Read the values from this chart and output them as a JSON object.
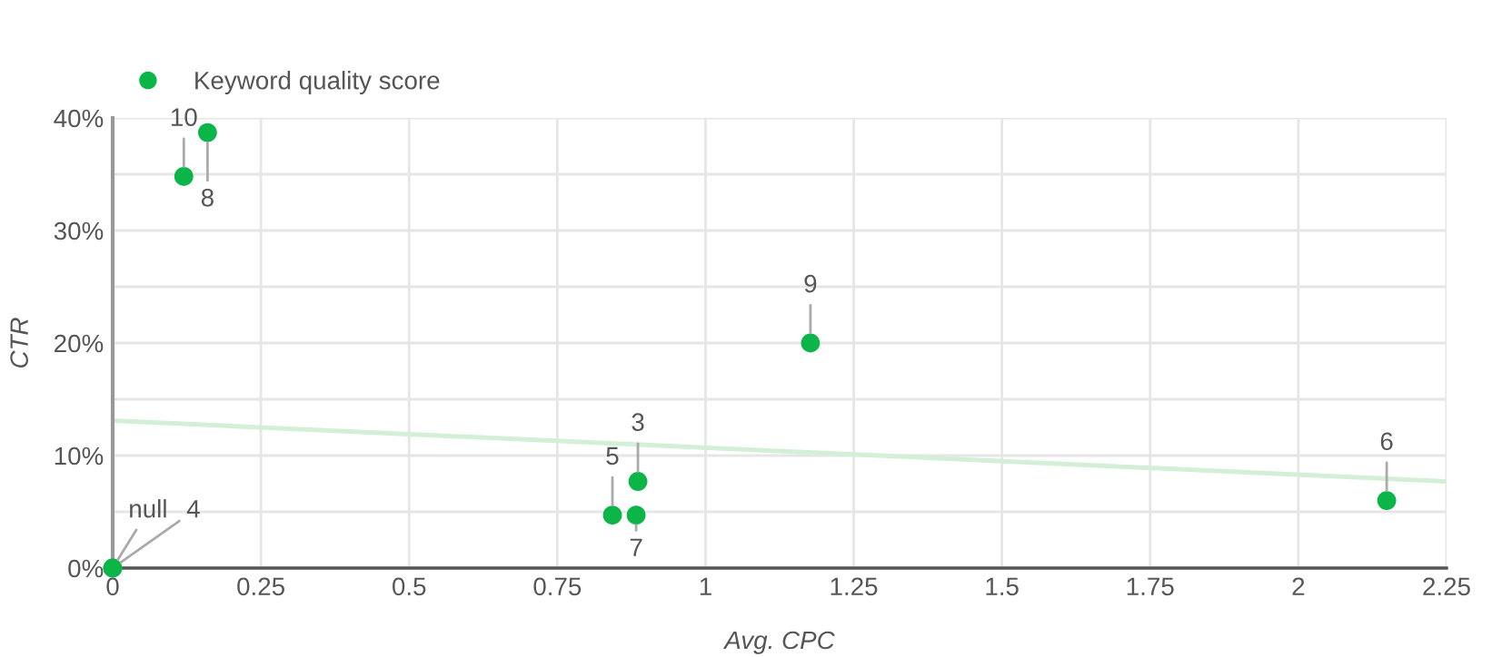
{
  "chart_data": {
    "type": "scatter",
    "xlabel": "Avg. CPC",
    "ylabel": "CTR",
    "series": [
      {
        "name": "Keyword quality score",
        "color": "#0bb548",
        "marker": "circle",
        "x": [
          0,
          0,
          0.12,
          0.16,
          0.843,
          0.883,
          0.886,
          1.177,
          2.149
        ],
        "values": [
          0,
          0,
          34.8,
          38.7,
          4.7,
          4.7,
          7.7,
          20.0,
          6.0
        ]
      },
      {
        "type": "line",
        "color": "#d4efd7",
        "x": [
          0,
          2.25
        ],
        "values": [
          13.1,
          7.7
        ]
      }
    ],
    "annotations": [
      {
        "text": "null",
        "x": 0,
        "y": 0
      },
      {
        "text": "4",
        "x": 0,
        "y": 0
      },
      {
        "text": "10",
        "x": 0.12,
        "y": 34.8
      },
      {
        "text": "8",
        "x": 0.16,
        "y": 38.7
      },
      {
        "text": "5",
        "x": 0.843,
        "y": 4.7
      },
      {
        "text": "7",
        "x": 0.883,
        "y": 4.7
      },
      {
        "text": "3",
        "x": 0.886,
        "y": 7.7
      },
      {
        "text": "9",
        "x": 1.177,
        "y": 20.0
      },
      {
        "text": "6",
        "x": 2.149,
        "y": 6.0
      }
    ],
    "xlim": [
      0,
      2.25
    ],
    "xticks": [
      0,
      0.25,
      0.5,
      0.75,
      1,
      1.25,
      1.5,
      1.75,
      2,
      2.25
    ],
    "ylim": [
      0,
      40
    ],
    "yticks": [
      {
        "value": 0,
        "label": "0%"
      },
      {
        "value": 5,
        "label": null
      },
      {
        "value": 10,
        "label": "10%"
      },
      {
        "value": 15,
        "label": null
      },
      {
        "value": 20,
        "label": "20%"
      },
      {
        "value": 25,
        "label": null
      },
      {
        "value": 30,
        "label": "30%"
      },
      {
        "value": 35,
        "label": null
      },
      {
        "value": 40,
        "label": "40%"
      }
    ],
    "grid": true,
    "legend": "top left"
  }
}
